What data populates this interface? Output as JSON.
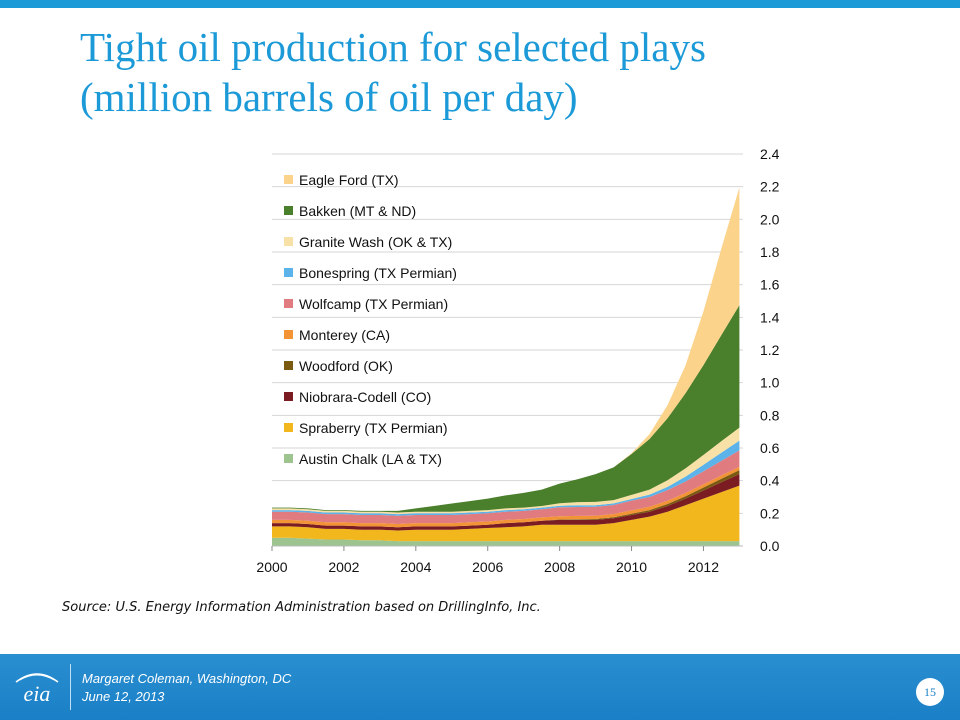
{
  "slide": {
    "title_line1": "Tight oil production for selected plays",
    "title_line2": "(million barrels of oil per day)",
    "source": "Source: U.S. Energy Information Administration based on DrillingInfo, Inc.",
    "presenter": "Margaret Coleman, Washington, DC",
    "date": "June 12, 2013",
    "page_number": "15",
    "logo_text": "eia",
    "accent_color": "#1b9ad7"
  },
  "chart_data": {
    "type": "area",
    "stacked": true,
    "title": "",
    "xlabel": "",
    "ylabel": "",
    "x": [
      2000,
      2000.5,
      2001,
      2001.5,
      2002,
      2002.5,
      2003,
      2003.5,
      2004,
      2004.5,
      2005,
      2005.5,
      2006,
      2006.5,
      2007,
      2007.5,
      2008,
      2008.5,
      2009,
      2009.5,
      2010,
      2010.5,
      2011,
      2011.5,
      2012,
      2012.5,
      2013
    ],
    "xlim": [
      2000,
      2013.1
    ],
    "ylim": [
      0,
      2.4
    ],
    "x_ticks": [
      "2000",
      "2002",
      "2004",
      "2006",
      "2008",
      "2010",
      "2012"
    ],
    "y_ticks": [
      "0.0",
      "0.2",
      "0.4",
      "0.6",
      "0.8",
      "1.0",
      "1.2",
      "1.4",
      "1.6",
      "1.8",
      "2.0",
      "2.2",
      "2.4"
    ],
    "y_axis_side": "right",
    "grid": "horizontal",
    "legend_position": "top-left",
    "series": [
      {
        "name": "Austin Chalk (LA & TX)",
        "color": "#9dc48f",
        "values": [
          0.05,
          0.05,
          0.045,
          0.04,
          0.04,
          0.035,
          0.035,
          0.03,
          0.03,
          0.03,
          0.03,
          0.03,
          0.03,
          0.03,
          0.03,
          0.03,
          0.03,
          0.03,
          0.03,
          0.03,
          0.03,
          0.03,
          0.03,
          0.03,
          0.03,
          0.03,
          0.03
        ]
      },
      {
        "name": "Spraberry (TX Permian)",
        "color": "#f2b71c",
        "values": [
          0.07,
          0.07,
          0.07,
          0.065,
          0.065,
          0.065,
          0.065,
          0.065,
          0.07,
          0.07,
          0.07,
          0.075,
          0.08,
          0.085,
          0.09,
          0.1,
          0.1,
          0.1,
          0.1,
          0.11,
          0.13,
          0.15,
          0.18,
          0.22,
          0.26,
          0.3,
          0.34
        ]
      },
      {
        "name": "Niobrara-Codell (CO)",
        "color": "#7a1c22",
        "values": [
          0.02,
          0.02,
          0.02,
          0.02,
          0.02,
          0.02,
          0.02,
          0.02,
          0.02,
          0.02,
          0.02,
          0.02,
          0.02,
          0.025,
          0.025,
          0.025,
          0.03,
          0.03,
          0.03,
          0.03,
          0.03,
          0.03,
          0.035,
          0.04,
          0.05,
          0.06,
          0.07
        ]
      },
      {
        "name": "Woodford (OK)",
        "color": "#7a5a10",
        "values": [
          0,
          0,
          0,
          0,
          0,
          0,
          0,
          0,
          0,
          0,
          0,
          0,
          0,
          0,
          0,
          0,
          0.002,
          0.004,
          0.005,
          0.006,
          0.008,
          0.01,
          0.012,
          0.015,
          0.018,
          0.022,
          0.025
        ]
      },
      {
        "name": "Monterey (CA)",
        "color": "#f29436",
        "values": [
          0.02,
          0.02,
          0.02,
          0.02,
          0.02,
          0.02,
          0.02,
          0.02,
          0.02,
          0.02,
          0.02,
          0.02,
          0.02,
          0.02,
          0.02,
          0.02,
          0.02,
          0.02,
          0.02,
          0.02,
          0.02,
          0.02,
          0.02,
          0.02,
          0.02,
          0.02,
          0.02
        ]
      },
      {
        "name": "Wolfcamp (TX Permian)",
        "color": "#e07b7f",
        "values": [
          0.05,
          0.05,
          0.05,
          0.05,
          0.05,
          0.05,
          0.05,
          0.05,
          0.05,
          0.05,
          0.05,
          0.05,
          0.05,
          0.05,
          0.05,
          0.05,
          0.055,
          0.055,
          0.055,
          0.055,
          0.06,
          0.06,
          0.065,
          0.07,
          0.08,
          0.09,
          0.1
        ]
      },
      {
        "name": "Bonespring (TX Permian)",
        "color": "#5cb3ea",
        "values": [
          0.01,
          0.01,
          0.01,
          0.01,
          0.01,
          0.01,
          0.01,
          0.01,
          0.01,
          0.01,
          0.01,
          0.01,
          0.01,
          0.01,
          0.01,
          0.01,
          0.01,
          0.01,
          0.01,
          0.01,
          0.01,
          0.015,
          0.02,
          0.03,
          0.04,
          0.05,
          0.06
        ]
      },
      {
        "name": "Granite Wash (OK & TX)",
        "color": "#f8e1a6",
        "values": [
          0.01,
          0.01,
          0.01,
          0.01,
          0.01,
          0.01,
          0.01,
          0.01,
          0.01,
          0.01,
          0.01,
          0.01,
          0.01,
          0.01,
          0.01,
          0.01,
          0.015,
          0.02,
          0.02,
          0.02,
          0.025,
          0.03,
          0.04,
          0.05,
          0.06,
          0.07,
          0.08
        ]
      },
      {
        "name": "Bakken (MT & ND)",
        "color": "#4a7f2b",
        "values": [
          0.005,
          0.005,
          0.005,
          0.005,
          0.005,
          0.005,
          0.005,
          0.01,
          0.02,
          0.035,
          0.05,
          0.06,
          0.07,
          0.08,
          0.09,
          0.1,
          0.12,
          0.14,
          0.17,
          0.2,
          0.25,
          0.31,
          0.38,
          0.46,
          0.55,
          0.65,
          0.75
        ]
      },
      {
        "name": "Eagle Ford (TX)",
        "color": "#fcd38b",
        "values": [
          0,
          0,
          0,
          0,
          0,
          0,
          0,
          0,
          0,
          0,
          0,
          0,
          0,
          0,
          0,
          0,
          0,
          0,
          0,
          0,
          0.005,
          0.03,
          0.08,
          0.17,
          0.33,
          0.53,
          0.72
        ]
      }
    ]
  }
}
